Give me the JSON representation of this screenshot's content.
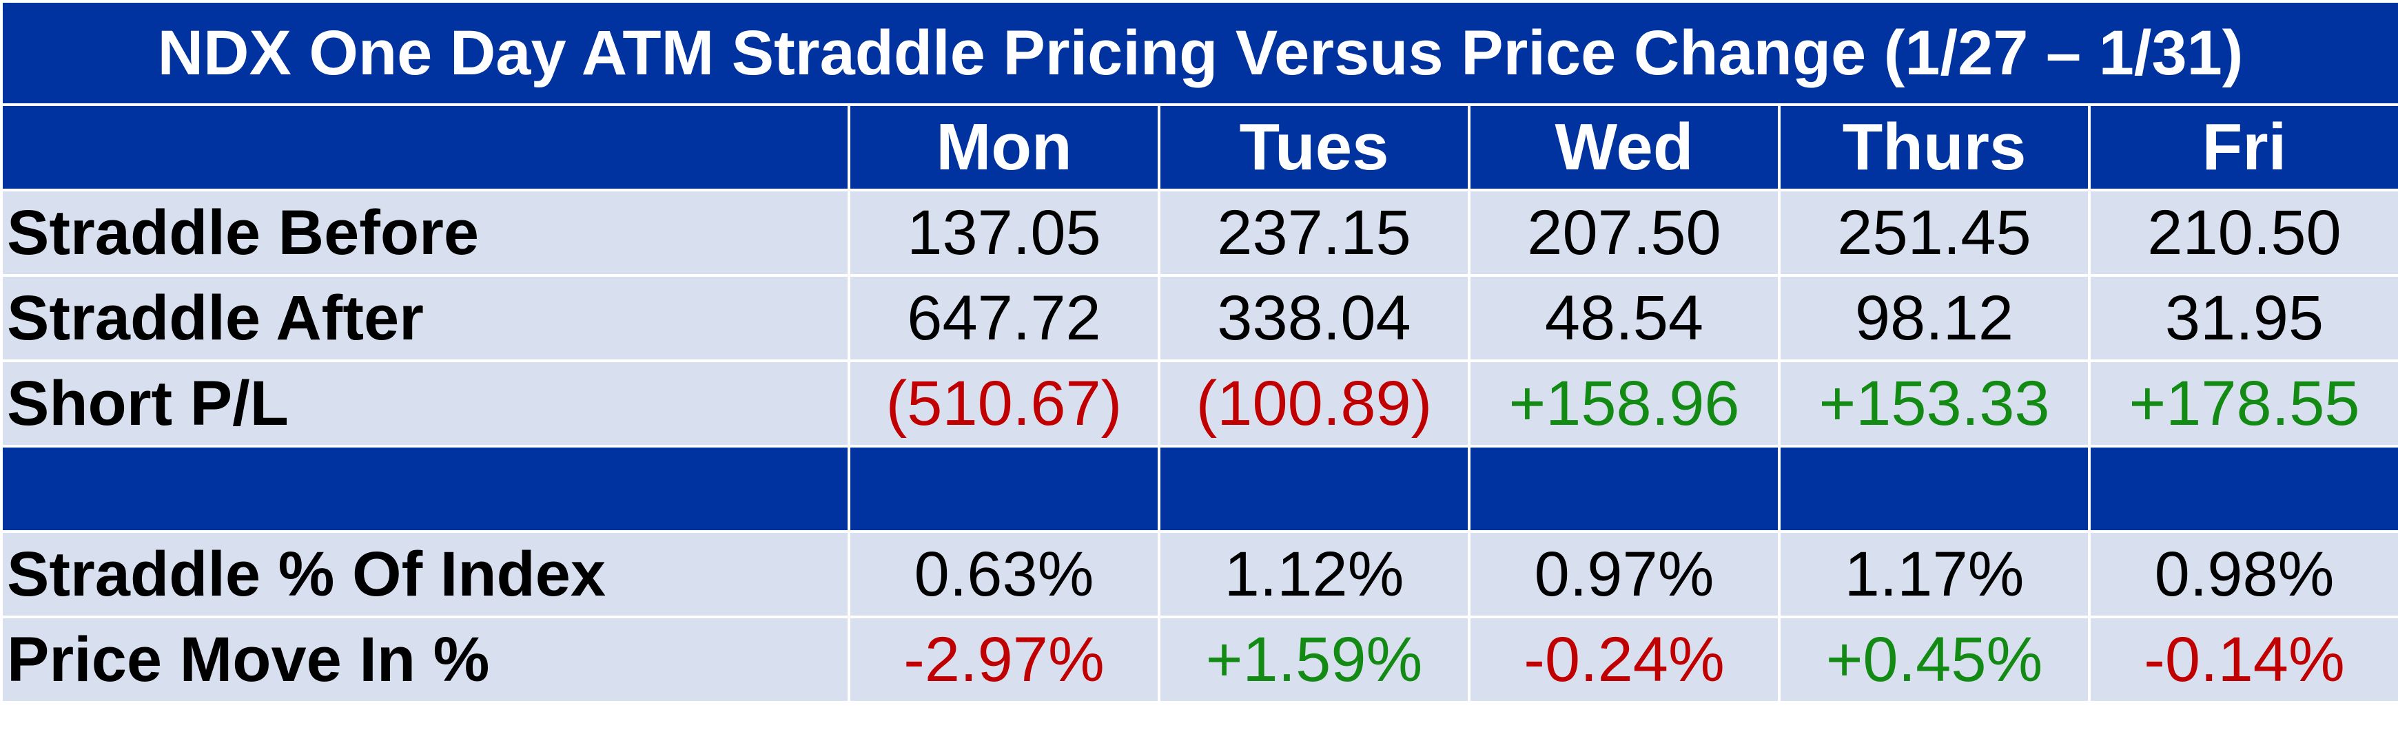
{
  "title": "NDX One Day ATM Straddle Pricing Versus Price Change (1/27 – 1/31)",
  "days": [
    "Mon",
    "Tues",
    "Wed",
    "Thurs",
    "Fri"
  ],
  "colors": {
    "header_bg": "#0033a0",
    "row_bg": "#d8e0f0",
    "negative": "#c00000",
    "positive": "#138a13"
  },
  "rows": {
    "straddle_before": {
      "label": "Straddle Before",
      "values": [
        "137.05",
        "237.15",
        "207.50",
        "251.45",
        "210.50"
      ],
      "signs": [
        "plain",
        "plain",
        "plain",
        "plain",
        "plain"
      ]
    },
    "straddle_after": {
      "label": "Straddle After",
      "values": [
        "647.72",
        "338.04",
        "48.54",
        "98.12",
        "31.95"
      ],
      "signs": [
        "plain",
        "plain",
        "plain",
        "plain",
        "plain"
      ]
    },
    "short_pl": {
      "label": "Short P/L",
      "values": [
        "(510.67)",
        "(100.89)",
        "+158.96",
        "+153.33",
        "+178.55"
      ],
      "signs": [
        "neg",
        "neg",
        "pos",
        "pos",
        "pos"
      ]
    },
    "straddle_pct": {
      "label": "Straddle % Of Index",
      "values": [
        "0.63%",
        "1.12%",
        "0.97%",
        "1.17%",
        "0.98%"
      ],
      "signs": [
        "plain",
        "plain",
        "plain",
        "plain",
        "plain"
      ]
    },
    "price_move": {
      "label": "Price Move In %",
      "values": [
        "-2.97%",
        "+1.59%",
        "-0.24%",
        "+0.45%",
        "-0.14%"
      ],
      "signs": [
        "neg",
        "pos",
        "neg",
        "pos",
        "neg"
      ]
    }
  }
}
